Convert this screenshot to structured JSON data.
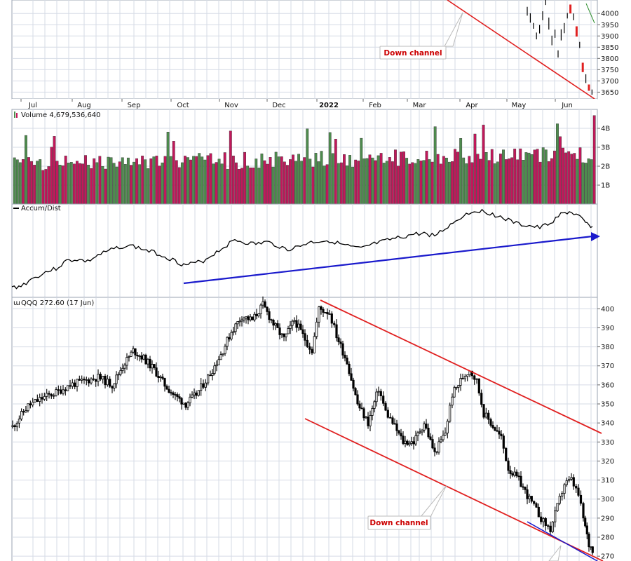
{
  "colors": {
    "up": "#4e8c4e",
    "down": "#c2185b",
    "channel": "#e02020",
    "trend": "#1a1acc",
    "grid": "#d6dbe6",
    "text": "#111111",
    "price_bar": "#000000"
  },
  "chart_data": [
    {
      "type": "candlestick",
      "panel": "spx-price",
      "ylim": [
        3620,
        4060
      ],
      "y_ticks": [
        4000,
        3950,
        3900,
        3850,
        3800,
        3750,
        3700,
        3650
      ],
      "y_tick_labels": [
        "4000",
        "3950",
        "3900",
        "3850",
        "3800",
        "3750",
        "3700",
        "3650"
      ],
      "x_axis_labels": [
        "Jul",
        "Aug",
        "Sep",
        "Oct",
        "Nov",
        "Dec",
        "2022",
        "Feb",
        "Mar",
        "Apr",
        "May",
        "Jun"
      ],
      "x_axis_bold": "2022",
      "recent_values": [
        4010,
        3980,
        3945,
        3900,
        3930,
        3990,
        4050,
        3955,
        3880,
        3910,
        3820,
        3905,
        3935,
        3990,
        4020,
        3985,
        3920,
        3860,
        3760,
        3710,
        3670,
        3650
      ],
      "annotation": "Down channel"
    },
    {
      "type": "bar",
      "panel": "volume",
      "title": "Volume 4,679,536,640",
      "ylim": [
        0,
        5000000000
      ],
      "y_ticks": [
        1000000000,
        2000000000,
        3000000000,
        4000000000
      ],
      "y_tick_labels": [
        "1B",
        "2B",
        "3B",
        "4B"
      ],
      "latest": 4679536640
    },
    {
      "type": "line",
      "panel": "accum-dist",
      "title": "Accum/Dist",
      "trendline": "rising"
    },
    {
      "type": "candlestick",
      "panel": "qqq-price",
      "title": "QQQ 272.60 (17 Jun)",
      "ylim": [
        266,
        406
      ],
      "y_ticks": [
        400,
        390,
        380,
        370,
        360,
        350,
        340,
        330,
        320,
        310,
        300,
        290,
        280,
        270
      ],
      "y_tick_labels": [
        "400",
        "390",
        "380",
        "370",
        "360",
        "350",
        "340",
        "330",
        "320",
        "310",
        "300",
        "290",
        "280",
        "270"
      ],
      "last": 272.6,
      "last_date": "17 Jun",
      "annotation": "Down channel"
    }
  ]
}
